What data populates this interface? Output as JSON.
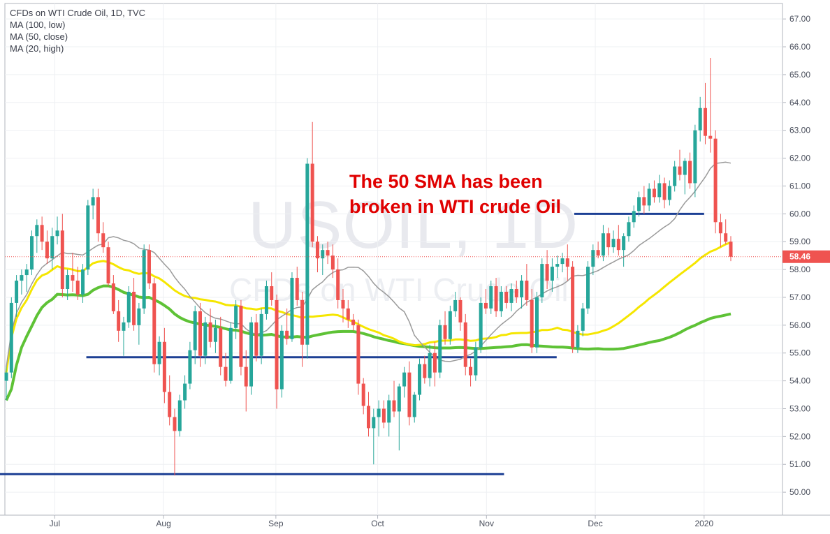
{
  "chart_data": {
    "type": "candlestick",
    "title": "CFDs on WTI Crude Oil, 1D, TVC",
    "watermark": "USOIL, 1D",
    "watermark_subtitle": "CFDs on WTI Crude Oil",
    "annotation": [
      "The 50 SMA has been",
      "broken in WTI crude Oil"
    ],
    "indicators": [
      {
        "name": "MA (100, low)",
        "color": "#5ec236"
      },
      {
        "name": "MA (50, close)",
        "color": "#f5e600"
      },
      {
        "name": "MA (20, high)",
        "color": "#9a9a9a"
      }
    ],
    "current_price": "58.46",
    "y_ticks": [
      "67.00",
      "66.00",
      "65.00",
      "64.00",
      "63.00",
      "62.00",
      "61.00",
      "60.00",
      "59.00",
      "58.00",
      "57.00",
      "56.00",
      "55.00",
      "54.00",
      "53.00",
      "52.00",
      "51.00",
      "50.00"
    ],
    "ylim": [
      49.2,
      67.3
    ],
    "x_ticks": [
      "Jul",
      "Aug",
      "Sep",
      "Oct",
      "Nov",
      "Dec",
      "2020"
    ],
    "x_tick_dates": [
      "2019-07-01",
      "2019-08-01",
      "2019-09-02",
      "2019-10-01",
      "2019-11-01",
      "2019-12-02",
      "2020-01-02"
    ],
    "date_range": [
      "2019-06-17",
      "2020-01-10"
    ],
    "colors": {
      "up": "#26a69a",
      "down": "#ef5350",
      "level_line": "#1c3f94",
      "price_line": "#ef5350"
    },
    "horizontal_levels": [
      {
        "price": 60.0,
        "from": "2019-11-26",
        "to": "2020-01-02"
      },
      {
        "price": 54.85,
        "from": "2019-07-10",
        "to": "2019-11-21"
      },
      {
        "price": 50.65,
        "from": "2019-06-13",
        "to": "2019-11-06"
      }
    ],
    "candles_ohlc": [
      [
        54.0,
        54.5,
        53.3,
        54.3
      ],
      [
        54.3,
        57.0,
        54.1,
        56.8
      ],
      [
        56.8,
        57.8,
        56.3,
        57.6
      ],
      [
        57.6,
        58.0,
        57.1,
        57.8
      ],
      [
        57.8,
        58.2,
        57.2,
        58.0
      ],
      [
        58.0,
        59.4,
        57.8,
        59.2
      ],
      [
        59.2,
        59.8,
        58.6,
        59.6
      ],
      [
        59.6,
        59.9,
        58.7,
        59.0
      ],
      [
        59.0,
        59.4,
        58.2,
        58.4
      ],
      [
        58.4,
        59.5,
        58.0,
        59.2
      ],
      [
        59.2,
        59.9,
        58.9,
        59.4
      ],
      [
        59.4,
        60.0,
        57.0,
        57.3
      ],
      [
        57.3,
        58.0,
        56.9,
        57.8
      ],
      [
        57.8,
        58.6,
        57.2,
        57.6
      ],
      [
        57.6,
        58.1,
        56.9,
        57.1
      ],
      [
        57.1,
        58.2,
        56.8,
        58.0
      ],
      [
        58.0,
        60.5,
        57.8,
        60.3
      ],
      [
        60.3,
        60.9,
        59.8,
        60.6
      ],
      [
        60.6,
        60.9,
        59.0,
        59.3
      ],
      [
        59.3,
        59.7,
        58.6,
        58.8
      ],
      [
        58.8,
        59.0,
        57.4,
        57.5
      ],
      [
        57.5,
        57.8,
        56.4,
        56.5
      ],
      [
        56.5,
        56.9,
        55.4,
        55.8
      ],
      [
        55.8,
        56.3,
        54.9,
        56.1
      ],
      [
        56.1,
        57.4,
        55.9,
        57.2
      ],
      [
        57.2,
        57.7,
        55.8,
        56.0
      ],
      [
        56.0,
        56.8,
        55.3,
        56.6
      ],
      [
        56.6,
        58.9,
        56.4,
        58.7
      ],
      [
        58.7,
        58.9,
        57.3,
        57.5
      ],
      [
        57.5,
        57.7,
        54.3,
        54.6
      ],
      [
        54.6,
        55.6,
        54.2,
        55.4
      ],
      [
        55.4,
        55.9,
        53.2,
        53.6
      ],
      [
        53.6,
        54.2,
        52.4,
        52.7
      ],
      [
        52.7,
        53.0,
        50.6,
        52.2
      ],
      [
        52.2,
        53.5,
        52.0,
        53.3
      ],
      [
        53.3,
        54.2,
        53.0,
        53.9
      ],
      [
        53.9,
        55.4,
        53.7,
        55.1
      ],
      [
        55.1,
        56.7,
        54.6,
        56.5
      ],
      [
        56.5,
        56.8,
        54.5,
        54.9
      ],
      [
        54.9,
        56.3,
        54.6,
        56.1
      ],
      [
        56.1,
        56.6,
        55.2,
        55.4
      ],
      [
        55.4,
        56.2,
        55.0,
        55.9
      ],
      [
        55.9,
        56.3,
        54.2,
        54.5
      ],
      [
        54.5,
        55.0,
        53.8,
        54.0
      ],
      [
        54.0,
        56.1,
        53.9,
        55.9
      ],
      [
        55.9,
        56.9,
        55.5,
        56.7
      ],
      [
        56.7,
        56.9,
        54.2,
        54.5
      ],
      [
        54.5,
        55.1,
        52.9,
        53.8
      ],
      [
        53.8,
        56.3,
        53.5,
        56.1
      ],
      [
        56.1,
        56.4,
        54.7,
        54.9
      ],
      [
        54.9,
        56.6,
        54.6,
        56.4
      ],
      [
        56.4,
        57.6,
        56.2,
        57.4
      ],
      [
        57.4,
        57.9,
        56.7,
        56.9
      ],
      [
        56.9,
        57.1,
        53.0,
        53.7
      ],
      [
        53.7,
        56.0,
        53.4,
        55.8
      ],
      [
        55.8,
        56.6,
        55.3,
        55.5
      ],
      [
        55.5,
        57.9,
        55.4,
        57.7
      ],
      [
        57.7,
        58.1,
        56.7,
        56.9
      ],
      [
        56.9,
        57.2,
        54.5,
        55.3
      ],
      [
        55.3,
        62.0,
        54.8,
        61.8
      ],
      [
        61.8,
        63.3,
        58.8,
        59.0
      ],
      [
        59.0,
        59.2,
        57.9,
        58.4
      ],
      [
        58.4,
        58.9,
        57.8,
        58.7
      ],
      [
        58.7,
        59.0,
        58.2,
        58.5
      ],
      [
        58.5,
        58.9,
        57.7,
        58.0
      ],
      [
        58.0,
        58.4,
        56.6,
        56.9
      ],
      [
        56.9,
        57.3,
        56.1,
        56.6
      ],
      [
        56.6,
        56.9,
        55.9,
        56.2
      ],
      [
        56.2,
        56.4,
        55.8,
        56.0
      ],
      [
        56.0,
        56.2,
        53.5,
        53.9
      ],
      [
        53.9,
        54.1,
        52.8,
        53.1
      ],
      [
        53.1,
        53.6,
        52.0,
        52.3
      ],
      [
        52.3,
        53.0,
        51.0,
        52.7
      ],
      [
        52.7,
        53.3,
        52.0,
        53.0
      ],
      [
        53.0,
        53.3,
        52.3,
        52.5
      ],
      [
        52.5,
        53.5,
        52.0,
        53.3
      ],
      [
        53.3,
        54.0,
        52.7,
        52.9
      ],
      [
        52.9,
        53.9,
        51.5,
        53.8
      ],
      [
        53.8,
        54.5,
        53.4,
        54.3
      ],
      [
        54.3,
        54.7,
        52.4,
        52.7
      ],
      [
        52.7,
        53.6,
        52.5,
        53.5
      ],
      [
        53.5,
        54.8,
        53.3,
        54.6
      ],
      [
        54.6,
        54.9,
        53.9,
        54.1
      ],
      [
        54.1,
        55.3,
        53.8,
        55.0
      ],
      [
        55.0,
        55.4,
        53.8,
        54.3
      ],
      [
        54.3,
        56.2,
        54.1,
        56.0
      ],
      [
        56.0,
        56.5,
        55.3,
        55.5
      ],
      [
        55.5,
        56.7,
        55.3,
        56.5
      ],
      [
        56.5,
        57.2,
        56.3,
        56.9
      ],
      [
        56.9,
        57.0,
        55.8,
        56.1
      ],
      [
        56.1,
        56.4,
        54.2,
        54.5
      ],
      [
        54.5,
        54.8,
        53.8,
        54.2
      ],
      [
        54.2,
        55.4,
        54.0,
        55.2
      ],
      [
        55.2,
        57.0,
        55.0,
        56.8
      ],
      [
        56.8,
        57.3,
        56.4,
        56.6
      ],
      [
        56.6,
        57.6,
        56.4,
        57.4
      ],
      [
        57.4,
        57.7,
        56.3,
        56.5
      ],
      [
        56.5,
        57.4,
        56.3,
        57.2
      ],
      [
        57.2,
        57.4,
        56.6,
        56.8
      ],
      [
        56.8,
        57.5,
        56.5,
        57.3
      ],
      [
        57.3,
        57.6,
        56.8,
        57.0
      ],
      [
        57.0,
        57.8,
        56.6,
        57.6
      ],
      [
        57.6,
        58.2,
        56.7,
        56.9
      ],
      [
        56.9,
        57.3,
        55.0,
        55.2
      ],
      [
        55.2,
        57.2,
        55.0,
        57.0
      ],
      [
        57.0,
        58.4,
        56.8,
        58.2
      ],
      [
        58.2,
        58.7,
        57.3,
        57.6
      ],
      [
        57.6,
        58.4,
        57.2,
        58.1
      ],
      [
        58.1,
        58.5,
        57.7,
        58.2
      ],
      [
        58.2,
        58.6,
        57.9,
        58.4
      ],
      [
        58.4,
        58.9,
        57.6,
        58.1
      ],
      [
        58.1,
        58.3,
        55.0,
        55.2
      ],
      [
        55.2,
        56.0,
        55.0,
        55.8
      ],
      [
        55.8,
        56.8,
        55.6,
        56.6
      ],
      [
        56.6,
        58.3,
        56.4,
        58.1
      ],
      [
        58.1,
        58.9,
        57.8,
        58.7
      ],
      [
        58.7,
        59.0,
        58.4,
        58.5
      ],
      [
        58.5,
        59.6,
        58.3,
        59.3
      ],
      [
        59.3,
        59.5,
        58.5,
        58.8
      ],
      [
        58.8,
        59.4,
        58.6,
        59.1
      ],
      [
        59.1,
        59.6,
        58.5,
        58.7
      ],
      [
        58.7,
        59.3,
        58.1,
        59.2
      ],
      [
        59.2,
        59.9,
        59.0,
        59.7
      ],
      [
        59.7,
        60.3,
        59.5,
        60.1
      ],
      [
        60.1,
        60.8,
        59.9,
        60.6
      ],
      [
        60.6,
        61.0,
        60.0,
        60.3
      ],
      [
        60.3,
        61.1,
        60.1,
        60.9
      ],
      [
        60.9,
        61.2,
        60.4,
        60.6
      ],
      [
        60.6,
        61.4,
        60.4,
        61.1
      ],
      [
        61.1,
        61.3,
        60.2,
        60.5
      ],
      [
        60.5,
        61.2,
        60.3,
        61.0
      ],
      [
        61.0,
        61.9,
        60.8,
        61.7
      ],
      [
        61.7,
        62.3,
        61.2,
        61.4
      ],
      [
        61.4,
        62.0,
        60.7,
        61.9
      ],
      [
        61.9,
        62.2,
        60.9,
        61.1
      ],
      [
        61.1,
        63.2,
        60.6,
        63.0
      ],
      [
        63.0,
        64.2,
        62.6,
        63.8
      ],
      [
        63.8,
        64.7,
        62.5,
        62.8
      ],
      [
        62.8,
        65.6,
        62.2,
        62.7
      ],
      [
        62.7,
        63.0,
        59.3,
        59.7
      ],
      [
        59.7,
        60.0,
        58.8,
        59.3
      ],
      [
        59.3,
        59.8,
        58.9,
        59.0
      ],
      [
        59.0,
        59.2,
        58.3,
        58.46
      ]
    ]
  }
}
